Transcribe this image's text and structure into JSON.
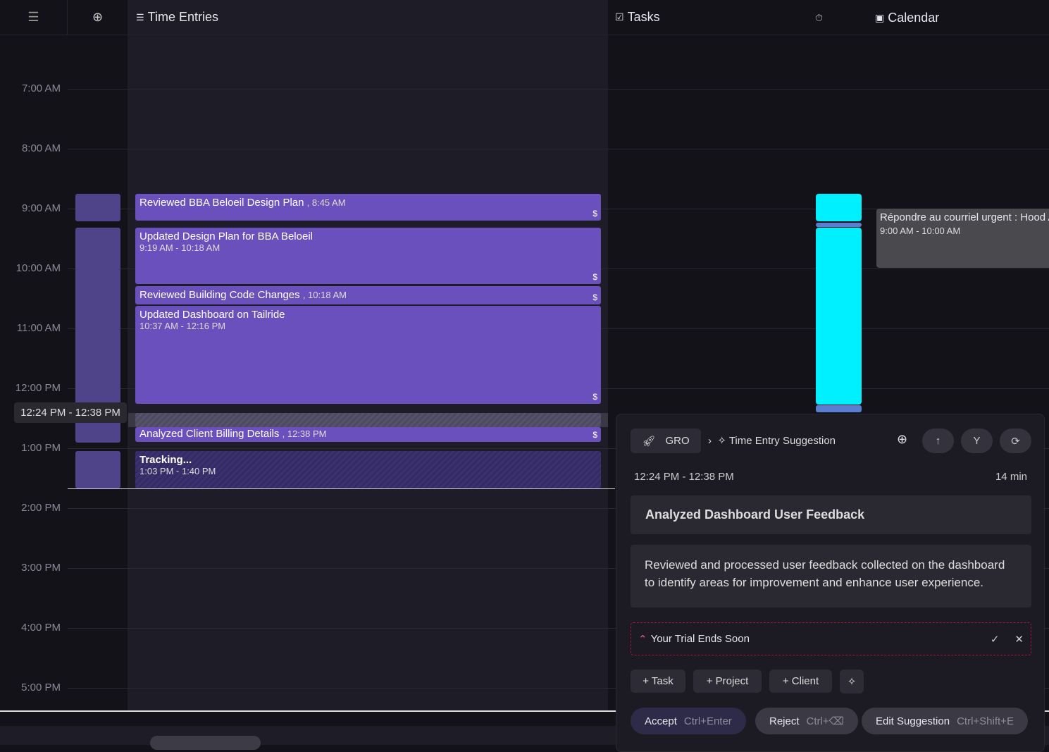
{
  "header": {
    "time_entries": "Time Entries",
    "tasks": "Tasks",
    "calendar": "Calendar"
  },
  "hours": [
    "7:00 AM",
    "8:00 AM",
    "9:00 AM",
    "10:00 AM",
    "11:00 AM",
    "12:00 PM",
    "1:00 PM",
    "2:00 PM",
    "3:00 PM",
    "4:00 PM",
    "5:00 PM"
  ],
  "hover_range": "12:24 PM - 12:38 PM",
  "entries": [
    {
      "title": "Reviewed BBA Beloeil Design Plan",
      "time": ", 8:45 AM",
      "billable": "$"
    },
    {
      "title": "Updated Design Plan for BBA Beloeil",
      "time": "9:19 AM - 10:18 AM",
      "billable": "$"
    },
    {
      "title": "Reviewed Building Code Changes",
      "time": ", 10:18 AM",
      "billable": "$"
    },
    {
      "title": "Updated Dashboard on Tailride",
      "time": "10:37 AM - 12:16 PM",
      "billable": "$"
    },
    {
      "title": "Analyzed Client Billing Details",
      "time": ", 12:38 PM",
      "billable": "$"
    },
    {
      "title": "Tracking...",
      "time": "1:03 PM - 1:40 PM"
    }
  ],
  "calendar_event": {
    "title": "Répondre au courriel urgent : Hood A",
    "time": "9:00 AM - 10:00 AM"
  },
  "panel": {
    "project": "GRO",
    "crumb": "Time Entry Suggestion",
    "range": "12:24 PM - 12:38 PM",
    "duration": "14 min",
    "title": "Analyzed Dashboard User Feedback",
    "description": "Reviewed and processed user feedback collected on the dashboard to identify areas for improvement and enhance user experience.",
    "trial": "Your Trial Ends Soon",
    "add_task": "+ Task",
    "add_project": "+ Project",
    "add_client": "+ Client",
    "accept": "Accept",
    "accept_key": "Ctrl+Enter",
    "reject": "Reject",
    "reject_key": "Ctrl+⌫",
    "edit": "Edit Suggestion",
    "edit_key": "Ctrl+Shift+E"
  },
  "colors": {
    "entry": "#6a50bd",
    "task_bar": "#00f0ff",
    "accent_border": "#a0183c"
  }
}
